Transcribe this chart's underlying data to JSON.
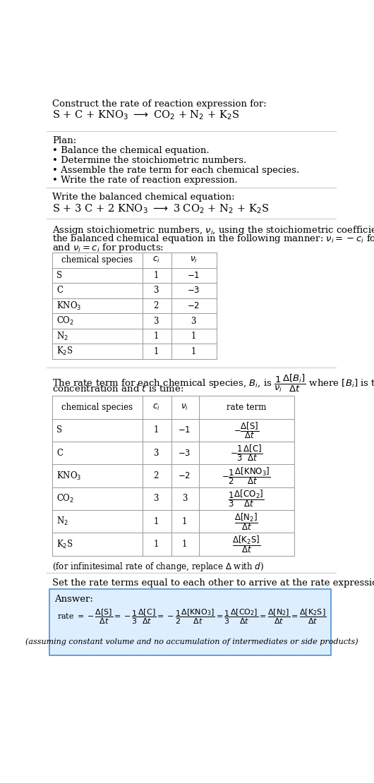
{
  "bg_color": "#ffffff",
  "text_color": "#000000",
  "title_line1": "Construct the rate of reaction expression for:",
  "reaction_unbalanced": "S + C + KNO$_3$ $\\longrightarrow$ CO$_2$ + N$_2$ + K$_2$S",
  "plan_header": "Plan:",
  "plan_items": [
    "Balance the chemical equation.",
    "Determine the stoichiometric numbers.",
    "Assemble the rate term for each chemical species.",
    "Write the rate of reaction expression."
  ],
  "balanced_header": "Write the balanced chemical equation:",
  "reaction_balanced": "S + 3 C + 2 KNO$_3$ $\\longrightarrow$ 3 CO$_2$ + N$_2$ + K$_2$S",
  "stoich_text1": "Assign stoichiometric numbers, $\\nu_i$, using the stoichiometric coefficients, $c_i$, from",
  "stoich_text2": "the balanced chemical equation in the following manner: $\\nu_i = -c_i$ for reactants",
  "stoich_text3": "and $\\nu_i = c_i$ for products:",
  "table1_headers": [
    "chemical species",
    "$c_i$",
    "$\\nu_i$"
  ],
  "table1_data": [
    [
      "S",
      "1",
      "$-1$"
    ],
    [
      "C",
      "3",
      "$-3$"
    ],
    [
      "KNO$_3$",
      "2",
      "$-2$"
    ],
    [
      "CO$_2$",
      "3",
      "3"
    ],
    [
      "N$_2$",
      "1",
      "1"
    ],
    [
      "K$_2$S",
      "1",
      "1"
    ]
  ],
  "rate_text1": "The rate term for each chemical species, $B_i$, is $\\dfrac{1}{\\nu_i}\\dfrac{\\Delta[B_i]}{\\Delta t}$ where $[B_i]$ is the amount",
  "rate_text2": "concentration and $t$ is time:",
  "table2_headers": [
    "chemical species",
    "$c_i$",
    "$\\nu_i$",
    "rate term"
  ],
  "table2_data": [
    [
      "S",
      "1",
      "$-1$",
      "$-\\dfrac{\\Delta[\\mathrm{S}]}{\\Delta t}$"
    ],
    [
      "C",
      "3",
      "$-3$",
      "$-\\dfrac{1}{3}\\dfrac{\\Delta[\\mathrm{C}]}{\\Delta t}$"
    ],
    [
      "KNO$_3$",
      "2",
      "$-2$",
      "$-\\dfrac{1}{2}\\dfrac{\\Delta[\\mathrm{KNO_3}]}{\\Delta t}$"
    ],
    [
      "CO$_2$",
      "3",
      "3",
      "$\\dfrac{1}{3}\\dfrac{\\Delta[\\mathrm{CO_2}]}{\\Delta t}$"
    ],
    [
      "N$_2$",
      "1",
      "1",
      "$\\dfrac{\\Delta[\\mathrm{N_2}]}{\\Delta t}$"
    ],
    [
      "K$_2$S",
      "1",
      "1",
      "$\\dfrac{\\Delta[\\mathrm{K_2S}]}{\\Delta t}$"
    ]
  ],
  "infinitesimal_note": "(for infinitesimal rate of change, replace $\\Delta$ with $d$)",
  "set_equal_text": "Set the rate terms equal to each other to arrive at the rate expression:",
  "answer_label": "Answer:",
  "answer_box_color": "#dceeff",
  "answer_border_color": "#4a90d9",
  "rate_expression": "rate $= -\\dfrac{\\Delta[\\mathrm{S}]}{\\Delta t} = -\\dfrac{1}{3}\\dfrac{\\Delta[\\mathrm{C}]}{\\Delta t} = -\\dfrac{1}{2}\\dfrac{\\Delta[\\mathrm{KNO_3}]}{\\Delta t} = \\dfrac{1}{3}\\dfrac{\\Delta[\\mathrm{CO_2}]}{\\Delta t} = \\dfrac{\\Delta[\\mathrm{N_2}]}{\\Delta t} = \\dfrac{\\Delta[\\mathrm{K_2S}]}{\\Delta t}$",
  "assuming_note": "(assuming constant volume and no accumulation of intermediates or side products)"
}
